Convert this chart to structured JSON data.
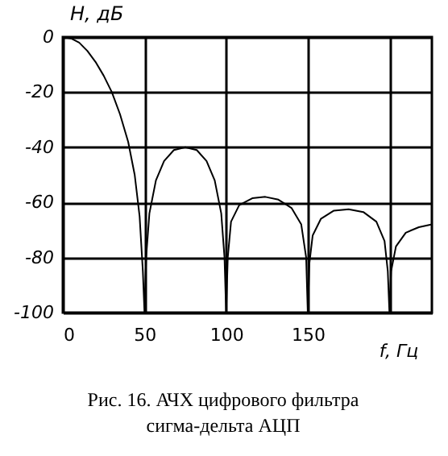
{
  "chart_data": {
    "type": "line",
    "xlabel": "f, Гц",
    "ylabel": "H, дБ",
    "annotations": [
      "Рис. 16.  АЧХ цифрового фильтра",
      "сигма-дельта АЦП"
    ],
    "x": [
      0,
      5,
      10,
      15,
      20,
      25,
      30,
      35,
      40,
      44,
      47,
      49,
      50,
      51,
      53,
      57,
      62,
      68,
      75,
      82,
      88,
      93,
      97,
      99,
      100,
      101,
      103,
      108,
      116,
      124,
      132,
      140,
      146,
      149,
      150,
      151,
      153,
      158,
      166,
      175,
      184,
      192,
      197,
      199,
      200,
      201,
      204,
      210,
      218,
      226
    ],
    "series": [
      {
        "color": "#000000",
        "values": [
          0,
          -0.5,
          -2,
          -5,
          -9,
          -14,
          -20,
          -28,
          -38,
          -50,
          -65,
          -85,
          -100,
          -80,
          -64,
          -52,
          -45,
          -41,
          -40,
          -41,
          -45,
          -52,
          -64,
          -80,
          -100,
          -80,
          -67,
          -61,
          -58.5,
          -58,
          -59,
          -62,
          -68,
          -80,
          -100,
          -82,
          -72,
          -66,
          -63,
          -62.5,
          -63.5,
          -67,
          -74,
          -85,
          -100,
          -85,
          -76,
          -71,
          -69,
          -68
        ]
      }
    ],
    "xlim": [
      0,
      226
    ],
    "xticks": [
      0,
      50,
      100,
      150,
      {
        "value": 200,
        "label": null
      }
    ],
    "ylim": [
      -100,
      0
    ],
    "yticks": [
      0,
      -20,
      -40,
      -60,
      -80,
      -100
    ],
    "grid": true,
    "legend": false,
    "marker": "none",
    "line_style": "solid"
  }
}
